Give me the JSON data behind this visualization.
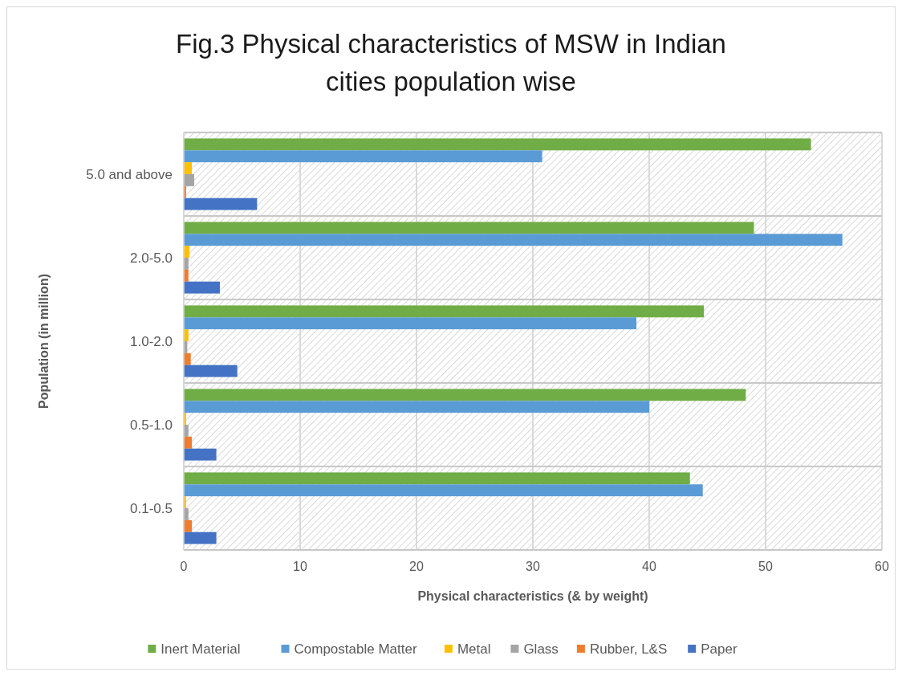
{
  "chart_data": {
    "type": "bar",
    "orientation": "horizontal",
    "title": "Fig.3 Physical characteristics of MSW in Indian cities population wise",
    "xlabel": "Physical characteristics (& by weight)",
    "ylabel": "Population (in million)",
    "categories": [
      "5.0 and above",
      "2.0-5.0",
      "1.0-2.0",
      "0.5-1.0",
      "0.1-0.5"
    ],
    "series": [
      {
        "name": "Inert Material",
        "color": "#70ad47",
        "values": [
          53.9,
          49.0,
          44.7,
          48.3,
          43.5
        ]
      },
      {
        "name": "Compostable Matter",
        "color": "#5b9bd5",
        "values": [
          30.8,
          56.6,
          38.9,
          40.0,
          44.6
        ]
      },
      {
        "name": "Metal",
        "color": "#ffc000",
        "values": [
          0.7,
          0.5,
          0.4,
          0.2,
          0.2
        ]
      },
      {
        "name": "Glass",
        "color": "#a5a5a5",
        "values": [
          0.9,
          0.4,
          0.3,
          0.4,
          0.4
        ]
      },
      {
        "name": "Rubber, L&S",
        "color": "#ed7d31",
        "values": [
          0.2,
          0.4,
          0.6,
          0.7,
          0.7
        ]
      },
      {
        "name": "Paper",
        "color": "#4472c4",
        "values": [
          6.3,
          3.1,
          4.6,
          2.8,
          2.8
        ]
      }
    ],
    "xlim": [
      0,
      60
    ],
    "xticks": [
      0,
      10,
      20,
      30,
      40,
      50,
      60
    ],
    "grid": true,
    "legend": "bottom"
  }
}
